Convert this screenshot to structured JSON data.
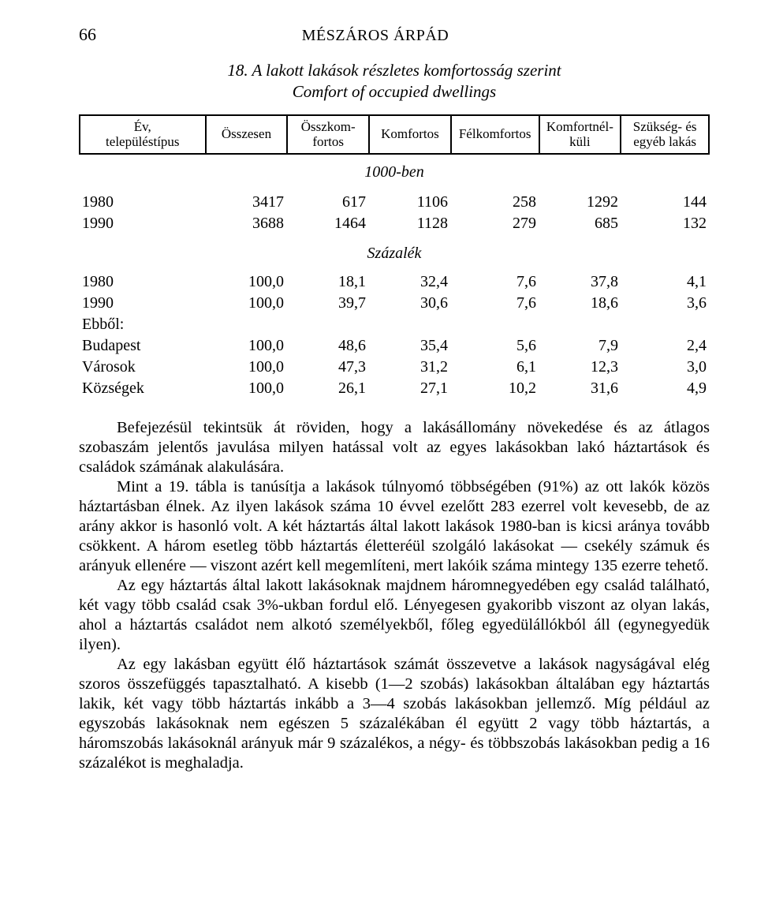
{
  "page_number": "66",
  "author": "MÉSZÁROS ÁRPÁD",
  "caption_line1": "18. A lakott lakások részletes komfortosság szerint",
  "caption_line2": "Comfort of occupied dwellings",
  "table_header": {
    "columns": [
      "Év,\ntelepüléstípus",
      "Összesen",
      "Összkom-\nfortos",
      "Komfortos",
      "Félkomfortos",
      "Komfortnél-\nküli",
      "Szükség- és\negyéb lakás"
    ],
    "col_widths": [
      "20%",
      "13%",
      "13%",
      "13%",
      "14%",
      "13%",
      "14%"
    ]
  },
  "unit1": "1000-ben",
  "rows1": [
    {
      "label": "1980",
      "cells": [
        "3417",
        "617",
        "1106",
        "258",
        "1292",
        "144"
      ]
    },
    {
      "label": "1990",
      "cells": [
        "3688",
        "1464",
        "1128",
        "279",
        "685",
        "132"
      ]
    }
  ],
  "unit2": "Százalék",
  "rows2": [
    {
      "label": "1980",
      "cells": [
        "100,0",
        "18,1",
        "32,4",
        "7,6",
        "37,8",
        "4,1"
      ]
    },
    {
      "label": "1990",
      "cells": [
        "100,0",
        "39,7",
        "30,6",
        "7,6",
        "18,6",
        "3,6"
      ]
    },
    {
      "label": "Ebből:",
      "cells": [
        "",
        "",
        "",
        "",
        "",
        ""
      ]
    },
    {
      "label": "Budapest",
      "cells": [
        "100,0",
        "48,6",
        "35,4",
        "5,6",
        "7,9",
        "2,4"
      ]
    },
    {
      "label": "Városok",
      "cells": [
        "100,0",
        "47,3",
        "31,2",
        "6,1",
        "12,3",
        "3,0"
      ]
    },
    {
      "label": "Községek",
      "cells": [
        "100,0",
        "26,1",
        "27,1",
        "10,2",
        "31,6",
        "4,9"
      ]
    }
  ],
  "paragraphs": [
    "Befejezésül tekintsük át röviden, hogy a lakásállomány növekedése és az átlagos szobaszám jelentős javulása milyen hatással volt az egyes lakásokban lakó háztartások és családok számának alakulására.",
    "Mint a 19. tábla is tanúsítja a lakások túlnyomó többségében (91%) az ott lakók közös háztartásban élnek. Az ilyen lakások száma 10 évvel ezelőtt 283 ezerrel volt kevesebb, de az arány akkor is hasonló volt. A két háztartás által lakott lakások 1980-ban is kicsi aránya tovább csökkent. A három esetleg több háztartás életteréül szolgáló lakásokat — csekély számuk és arányuk ellenére — viszont azért kell megemlíteni, mert lakóik száma mintegy 135 ezerre tehető.",
    "Az egy háztartás által lakott lakásoknak majdnem háromnegyedében egy család található, két vagy több család csak 3%-ukban fordul elő. Lényegesen gyakoribb viszont az olyan lakás, ahol a háztartás családot nem alkotó személyekből, főleg egyedülállókból áll (egynegyedük ilyen).",
    "Az egy lakásban együtt élő háztartások számát összevetve a lakások nagyságával elég szoros összefüggés tapasztalható. A kisebb (1—2 szobás) lakásokban általában egy háztartás lakik, két vagy több háztartás inkább a 3—4 szobás lakásokban jellemző. Míg például az egyszobás lakásoknak nem egészen 5 százalékában él együtt 2 vagy több háztartás, a háromszobás lakásoknál arányuk már 9 százalékos, a négy- és többszobás lakásokban pedig a 16 százalékot is meghaladja."
  ]
}
